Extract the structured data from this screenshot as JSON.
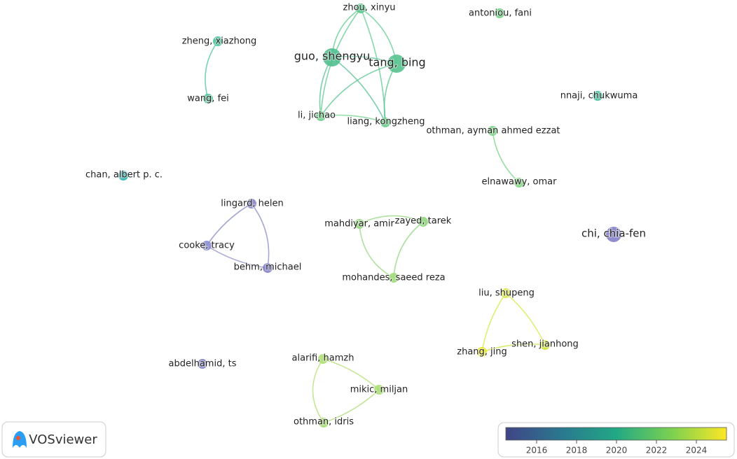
{
  "nodes": [
    {
      "label": "zhou, xinyu",
      "color": "#5cc98c"
    },
    {
      "label": "antoniou, fani",
      "color": "#6ecf84"
    },
    {
      "label": "zheng, xiazhong",
      "color": "#4cc39a"
    },
    {
      "label": "guo, shengyu",
      "color": "#4fbf8e"
    },
    {
      "label": "tang, bing",
      "color": "#55c38e"
    },
    {
      "label": "wang, fei",
      "color": "#4fc49a"
    },
    {
      "label": "nnaji, chukwuma",
      "color": "#3fbc9a"
    },
    {
      "label": "li, jichao",
      "color": "#6fd08a"
    },
    {
      "label": "liang, kongzheng",
      "color": "#6acd8a"
    },
    {
      "label": "othman, ayman ahmed ezzat",
      "color": "#77d381"
    },
    {
      "label": "chan, albert p. c.",
      "color": "#33b3a8"
    },
    {
      "label": "elnawawy, omar",
      "color": "#7fd67e"
    },
    {
      "label": "lingard, helen",
      "color": "#8789c4"
    },
    {
      "label": "mahdiyar, amir",
      "color": "#92d77c"
    },
    {
      "label": "zayed, tarek",
      "color": "#8ed67b"
    },
    {
      "label": "chi, chia-fen",
      "color": "#8580c8"
    },
    {
      "label": "cooke, tracy",
      "color": "#8d8fd0"
    },
    {
      "label": "behm, michael",
      "color": "#8585c6"
    },
    {
      "label": "mohandes, saeed reza",
      "color": "#a0db7a"
    },
    {
      "label": "liu, shupeng",
      "color": "#d6e84a"
    },
    {
      "label": "shen, jianhong",
      "color": "#cfe23d"
    },
    {
      "label": "zhang, jing",
      "color": "#e5e620"
    },
    {
      "label": "abdelhamid, ts",
      "color": "#8080c4"
    },
    {
      "label": "alarifi, hamzh",
      "color": "#b1df76"
    },
    {
      "label": "mikic, miljan",
      "color": "#a9de73"
    },
    {
      "label": "othman, idris",
      "color": "#a6dd73"
    }
  ],
  "legend": {
    "ticks": [
      2016,
      2018,
      2020,
      2022,
      2024
    ]
  },
  "logo": {
    "text": "VOSviewer"
  }
}
